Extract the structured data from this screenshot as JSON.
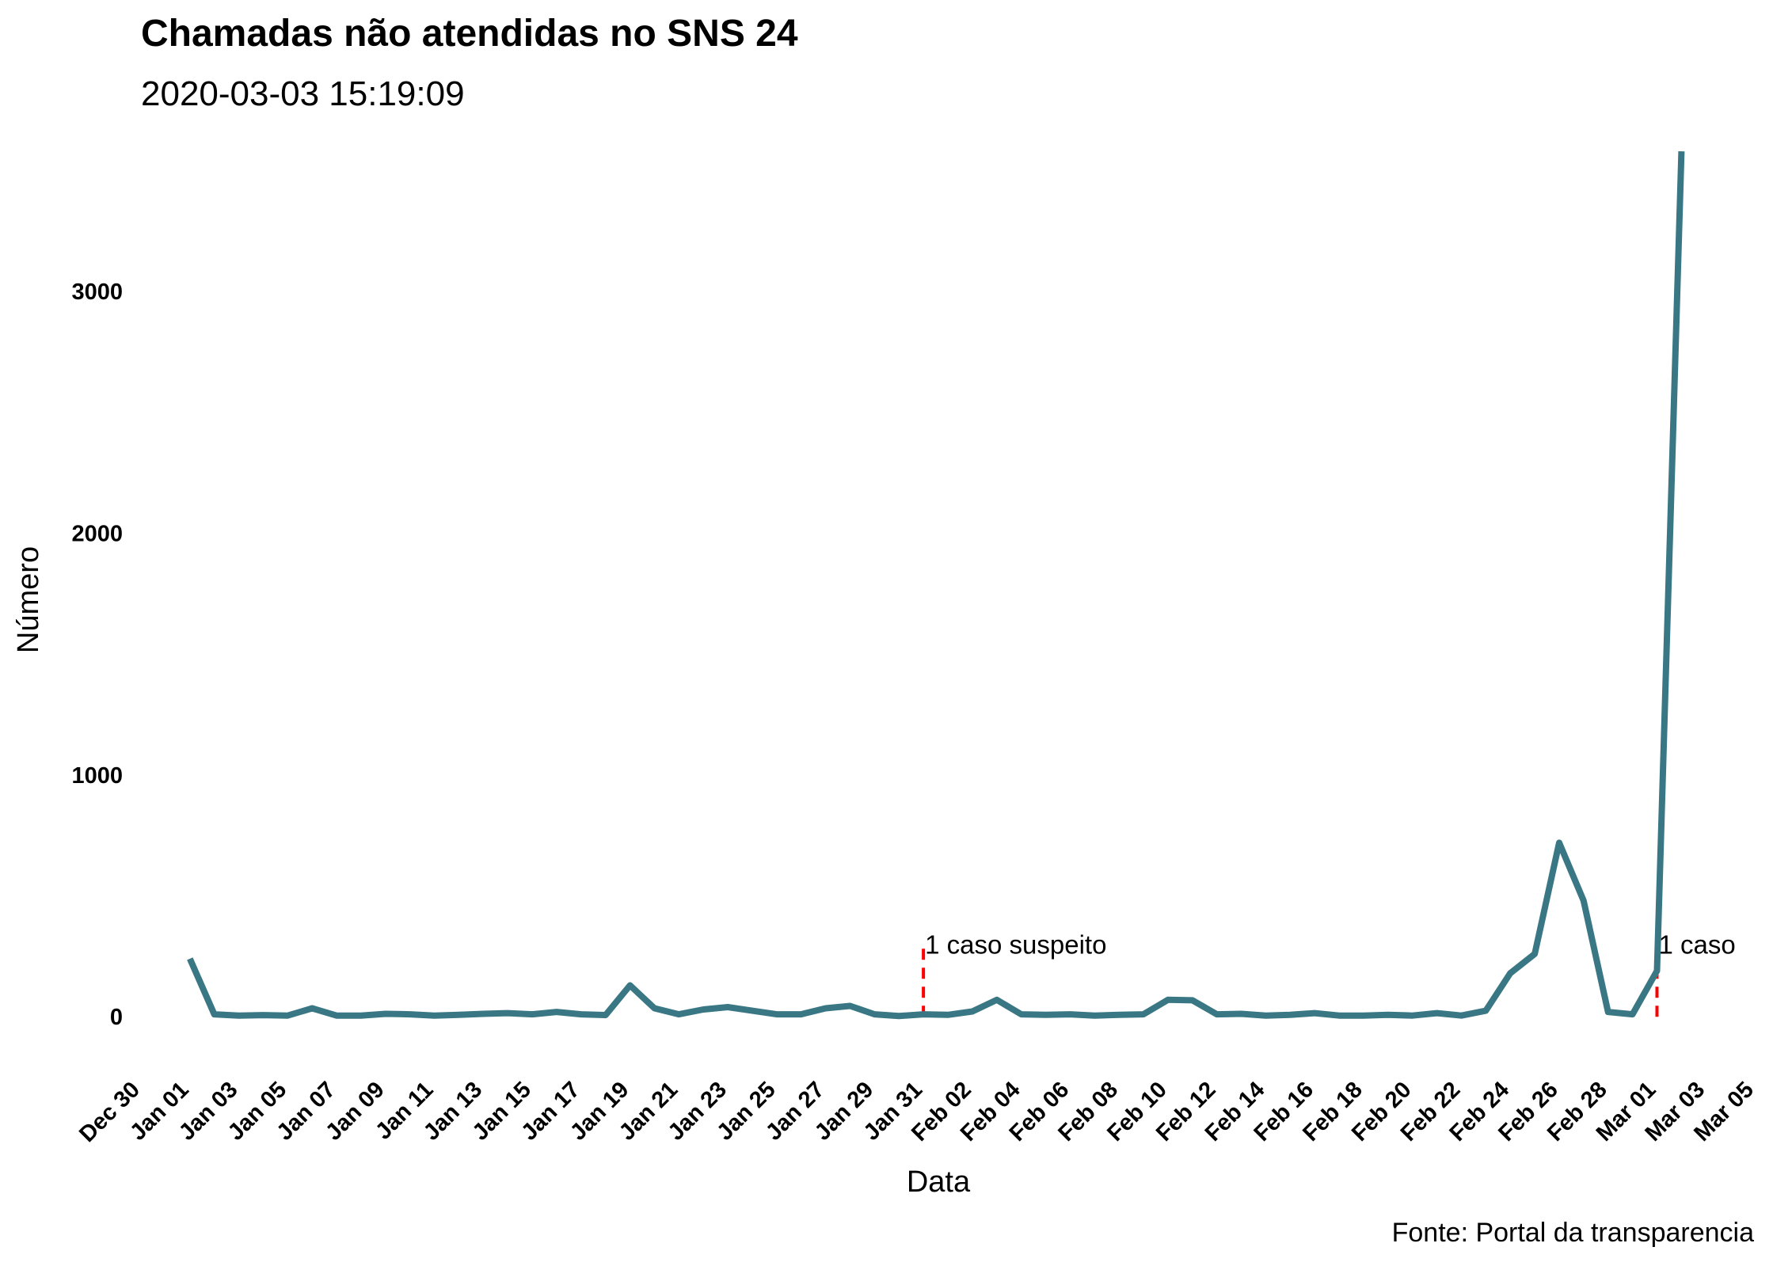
{
  "chart_data": {
    "type": "line",
    "title": "Chamadas não atendidas no SNS 24",
    "subtitle": "2020-03-03 15:19:09",
    "xlabel": "Data",
    "ylabel": "Número",
    "caption": "Fonte: Portal da transparencia",
    "x_ticks": [
      "Dec 30",
      "Jan 01",
      "Jan 03",
      "Jan 05",
      "Jan 07",
      "Jan 09",
      "Jan 11",
      "Jan 13",
      "Jan 15",
      "Jan 17",
      "Jan 19",
      "Jan 21",
      "Jan 23",
      "Jan 25",
      "Jan 27",
      "Jan 29",
      "Jan 31",
      "Feb 02",
      "Feb 04",
      "Feb 06",
      "Feb 08",
      "Feb 10",
      "Feb 12",
      "Feb 14",
      "Feb 16",
      "Feb 18",
      "Feb 20",
      "Feb 22",
      "Feb 24",
      "Feb 26",
      "Feb 28",
      "Mar 01",
      "Mar 03",
      "Mar 05"
    ],
    "y_ticks": [
      0,
      1000,
      2000,
      3000
    ],
    "xlim": [
      "2019-12-30",
      "2020-03-05"
    ],
    "ylim": [
      -150,
      3600
    ],
    "grid": false,
    "line_color": "#3a7784",
    "series": [
      {
        "x": [
          "2020-01-01",
          "2020-01-02",
          "2020-01-03",
          "2020-01-04",
          "2020-01-05",
          "2020-01-06",
          "2020-01-07",
          "2020-01-08",
          "2020-01-09",
          "2020-01-10",
          "2020-01-11",
          "2020-01-12",
          "2020-01-13",
          "2020-01-14",
          "2020-01-15",
          "2020-01-16",
          "2020-01-17",
          "2020-01-18",
          "2020-01-19",
          "2020-01-20",
          "2020-01-21",
          "2020-01-22",
          "2020-01-23",
          "2020-01-24",
          "2020-01-25",
          "2020-01-26",
          "2020-01-27",
          "2020-01-28",
          "2020-01-29",
          "2020-01-30",
          "2020-01-31",
          "2020-02-01",
          "2020-02-02",
          "2020-02-03",
          "2020-02-04",
          "2020-02-05",
          "2020-02-06",
          "2020-02-07",
          "2020-02-08",
          "2020-02-09",
          "2020-02-10",
          "2020-02-11",
          "2020-02-12",
          "2020-02-13",
          "2020-02-14",
          "2020-02-15",
          "2020-02-16",
          "2020-02-17",
          "2020-02-18",
          "2020-02-19",
          "2020-02-20",
          "2020-02-21",
          "2020-02-22",
          "2020-02-23",
          "2020-02-24",
          "2020-02-25",
          "2020-02-26",
          "2020-02-27",
          "2020-02-28",
          "2020-02-29",
          "2020-03-01",
          "2020-03-02"
        ],
        "values": [
          240,
          10,
          5,
          7,
          5,
          35,
          5,
          5,
          12,
          10,
          5,
          8,
          12,
          15,
          10,
          20,
          10,
          7,
          130,
          35,
          10,
          30,
          40,
          25,
          10,
          10,
          35,
          45,
          10,
          3,
          10,
          8,
          22,
          70,
          10,
          8,
          10,
          5,
          8,
          10,
          70,
          68,
          10,
          12,
          5,
          8,
          15,
          5,
          5,
          8,
          5,
          15,
          5,
          25,
          180,
          260,
          720,
          480,
          20,
          10,
          190,
          3580
        ]
      }
    ],
    "annotations": [
      {
        "date": "2020-01-31",
        "label": "1 caso suspeito",
        "line_color": "#ff0000",
        "y_top": 300
      },
      {
        "date": "2020-03-01",
        "label": "1 caso",
        "line_color": "#ff0000",
        "y_top": 300
      }
    ]
  }
}
